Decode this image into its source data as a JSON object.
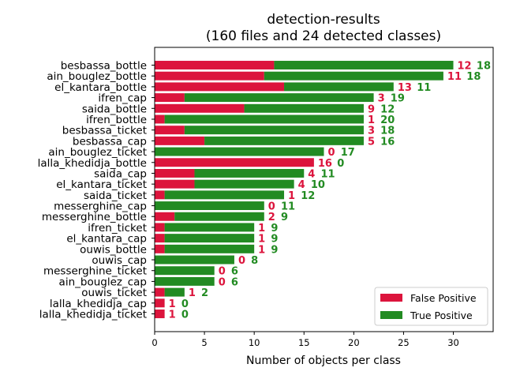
{
  "chart_data": {
    "type": "bar",
    "orientation": "horizontal",
    "stacked": true,
    "title": "detection-results",
    "subtitle": "(160 files and 24 detected classes)",
    "xlabel": "Number of objects per class",
    "xlim": [
      0,
      34
    ],
    "xticks": [
      "0",
      "5",
      "10",
      "15",
      "20",
      "25",
      "30"
    ],
    "grid": false,
    "legend_position": "lower right",
    "colors": {
      "false_positive": "#dc143c",
      "true_positive": "#228b22"
    },
    "categories": [
      "besbassa_bottle",
      "ain_bouglez_bottle",
      "el_kantara_bottle",
      "ifren_cap",
      "saida_bottle",
      "ifren_bottle",
      "besbassa_ticket",
      "besbassa_cap",
      "ain_bouglez_ticket",
      "lalla_khedidja_bottle",
      "saida_cap",
      "el_kantara_ticket",
      "saida_ticket",
      "messerghine_cap",
      "messerghine_bottle",
      "ifren_ticket",
      "el_kantara_cap",
      "ouwis_bottle",
      "ouwis_cap",
      "messerghine_ticket",
      "ain_bouglez_cap",
      "ouwis_ticket",
      "lalla_khedidja_cap",
      "lalla_khedidja_ticket"
    ],
    "series": [
      {
        "name": "False Positive",
        "values": [
          12,
          11,
          13,
          3,
          9,
          1,
          3,
          5,
          0,
          16,
          4,
          4,
          1,
          0,
          2,
          1,
          1,
          1,
          0,
          0,
          0,
          1,
          1,
          1
        ]
      },
      {
        "name": "True Positive",
        "values": [
          18,
          18,
          11,
          19,
          12,
          20,
          18,
          16,
          17,
          0,
          11,
          10,
          12,
          11,
          9,
          9,
          9,
          9,
          8,
          6,
          6,
          2,
          0,
          0
        ]
      }
    ]
  }
}
